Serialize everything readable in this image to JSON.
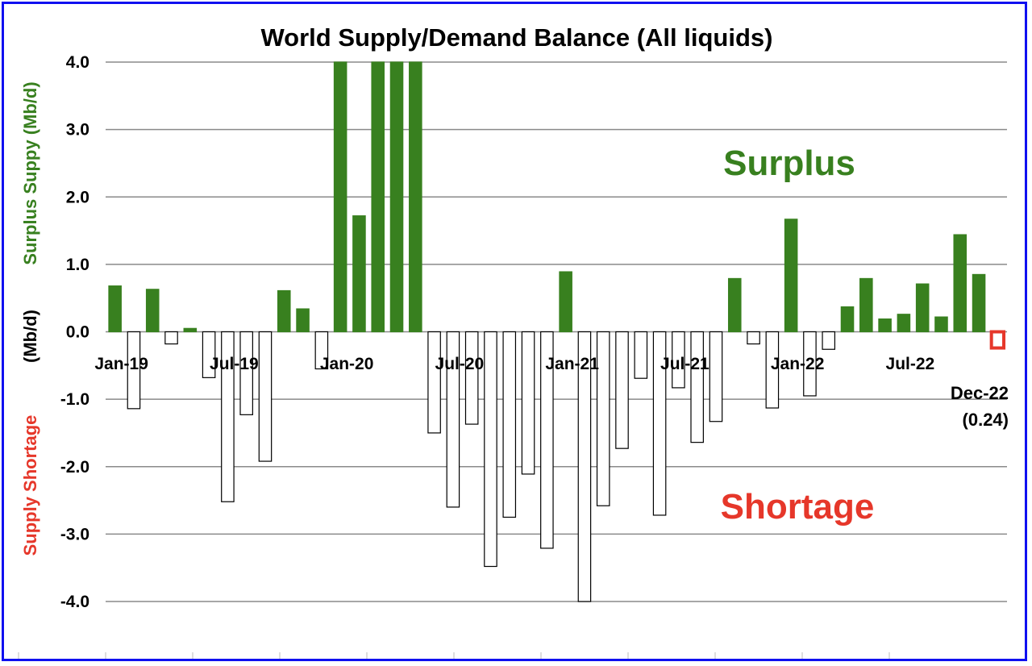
{
  "chart_data": {
    "type": "bar",
    "title": "World Supply/Demand Balance (All liquids)",
    "ylabel": {
      "surplus": "Surplus Suppy (Mb/d)",
      "unit": "(Mb/d)",
      "shortage": "Supply Shortage"
    },
    "ylim": [
      -4.0,
      4.0
    ],
    "yticks": [
      "4.0",
      "3.0",
      "2.0",
      "1.0",
      "0.0",
      "-1.0",
      "-2.0",
      "-3.0",
      "-4.0"
    ],
    "grid": true,
    "x_tick_labels": [
      {
        "index": 0,
        "label": "Jan-19"
      },
      {
        "index": 6,
        "label": "Jul-19"
      },
      {
        "index": 12,
        "label": "Jan-20"
      },
      {
        "index": 18,
        "label": "Jul-20"
      },
      {
        "index": 24,
        "label": "Jan-21"
      },
      {
        "index": 30,
        "label": "Jul-21"
      },
      {
        "index": 36,
        "label": "Jan-22"
      },
      {
        "index": 42,
        "label": "Jul-22"
      }
    ],
    "categories": [
      "Jan-19",
      "Feb-19",
      "Mar-19",
      "Apr-19",
      "May-19",
      "Jun-19",
      "Jul-19",
      "Aug-19",
      "Sep-19",
      "Oct-19",
      "Nov-19",
      "Dec-19",
      "Jan-20",
      "Feb-20",
      "Mar-20",
      "Apr-20",
      "May-20",
      "Jun-20",
      "Jul-20",
      "Aug-20",
      "Sep-20",
      "Oct-20",
      "Nov-20",
      "Dec-20",
      "Jan-21",
      "Feb-21",
      "Mar-21",
      "Apr-21",
      "May-21",
      "Jun-21",
      "Jul-21",
      "Aug-21",
      "Sep-21",
      "Oct-21",
      "Nov-21",
      "Dec-21",
      "Jan-22",
      "Feb-22",
      "Mar-22",
      "Apr-22",
      "May-22",
      "Jun-22",
      "Jul-22",
      "Aug-22",
      "Sep-22",
      "Oct-22",
      "Nov-22",
      "Dec-22"
    ],
    "values": [
      0.68,
      -1.14,
      0.63,
      -0.18,
      0.05,
      -0.68,
      -2.52,
      -1.23,
      -1.92,
      0.61,
      0.34,
      -0.55,
      4.0,
      1.72,
      4.0,
      4.0,
      4.0,
      -1.5,
      -2.6,
      -1.37,
      -3.48,
      -2.75,
      -2.11,
      -3.21,
      0.89,
      -4.0,
      -2.58,
      -1.73,
      -0.69,
      -2.72,
      -0.83,
      -1.64,
      -1.33,
      0.79,
      -0.18,
      -1.13,
      1.67,
      -0.95,
      -0.26,
      0.37,
      0.79,
      0.19,
      0.26,
      0.71,
      0.22,
      1.44,
      0.85,
      -0.24
    ],
    "colors": {
      "surplus": "#38801f",
      "shortage": "#ffffff",
      "outline": "#000000",
      "highlight": "#e6372a",
      "grid": "#8a8a8a"
    },
    "annotations": {
      "surplus_label": "Surplus",
      "shortage_label": "Shortage",
      "last_month": "Dec-22",
      "last_value": "(0.24)"
    }
  }
}
